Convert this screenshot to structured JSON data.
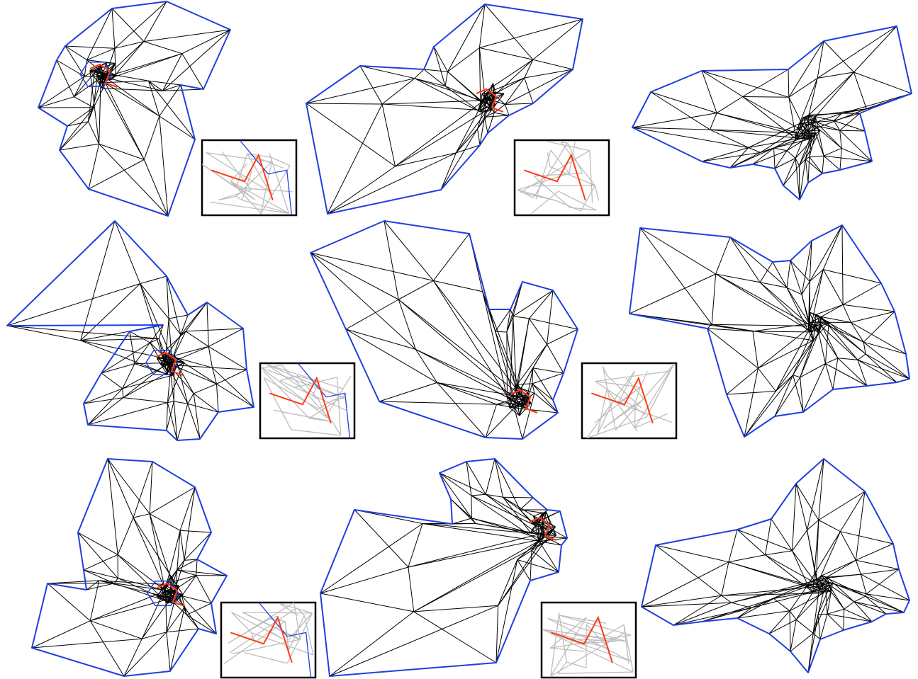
{
  "figure": {
    "description_visible_text": [],
    "colors": {
      "boundary": "#1f3fe0",
      "mesh_edge": "#000000",
      "highlight_path": "#ff3a10",
      "inset_edge": "#bdbdbd",
      "inset_frame": "#000000",
      "background": "#ffffff"
    },
    "panels": [
      {
        "row": 1,
        "col": 1,
        "has_inset": true
      },
      {
        "row": 1,
        "col": 2,
        "has_inset": true
      },
      {
        "row": 1,
        "col": 3,
        "has_inset": false
      },
      {
        "row": 2,
        "col": 1,
        "has_inset": true
      },
      {
        "row": 2,
        "col": 2,
        "has_inset": true
      },
      {
        "row": 2,
        "col": 3,
        "has_inset": false
      },
      {
        "row": 3,
        "col": 1,
        "has_inset": true
      },
      {
        "row": 3,
        "col": 2,
        "has_inset": true
      },
      {
        "row": 3,
        "col": 3,
        "has_inset": false
      }
    ]
  }
}
